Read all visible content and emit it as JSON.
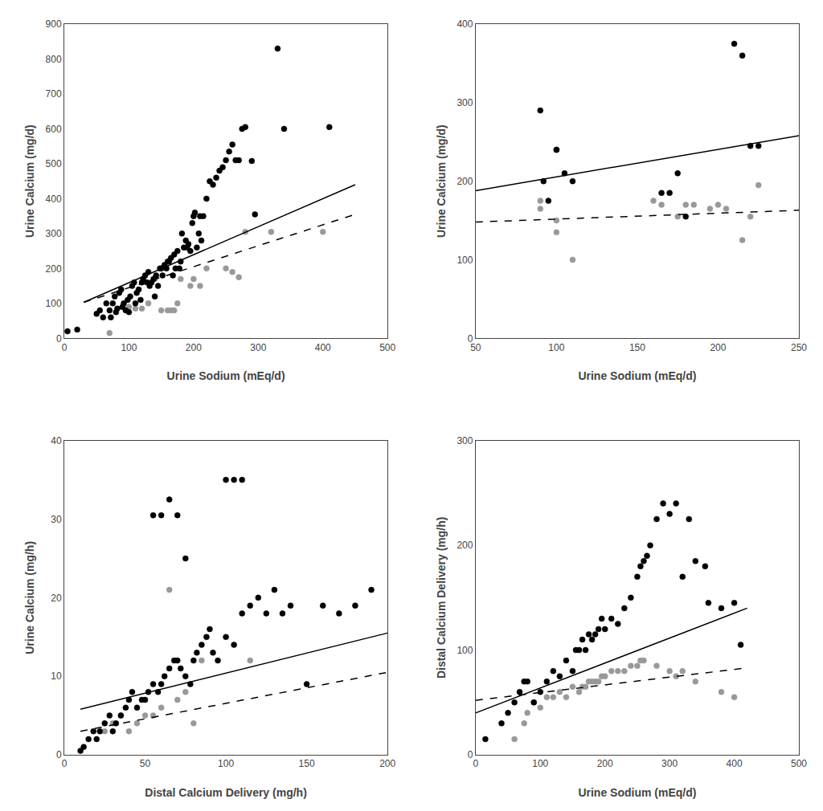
{
  "chart_data": [
    {
      "type": "scatter",
      "xlabel": "Urine Sodium (mEq/d)",
      "ylabel": "Urine Calcium (mg/d)",
      "xlim": [
        0,
        500
      ],
      "ylim": [
        0,
        900
      ],
      "xticks": [
        0,
        100,
        200,
        300,
        400,
        500
      ],
      "yticks": [
        0,
        100,
        200,
        300,
        400,
        500,
        600,
        700,
        800,
        900
      ],
      "grid": false,
      "series": [
        {
          "type": "scatter",
          "color": "#999999",
          "marker": "circle",
          "x": [
            70,
            90,
            100,
            110,
            120,
            130,
            140,
            150,
            160,
            165,
            170,
            175,
            180,
            195,
            200,
            210,
            220,
            250,
            260,
            270,
            280,
            320,
            400
          ],
          "values": [
            15,
            90,
            90,
            85,
            85,
            100,
            170,
            80,
            80,
            80,
            80,
            100,
            170,
            150,
            170,
            150,
            200,
            200,
            190,
            175,
            305,
            305,
            305
          ]
        },
        {
          "type": "scatter",
          "color": "#000000",
          "marker": "circle",
          "x": [
            5,
            20,
            50,
            55,
            60,
            65,
            70,
            72,
            75,
            78,
            80,
            82,
            85,
            88,
            90,
            92,
            95,
            98,
            100,
            102,
            105,
            108,
            110,
            112,
            115,
            118,
            120,
            122,
            125,
            128,
            130,
            132,
            135,
            138,
            140,
            142,
            145,
            148,
            150,
            152,
            155,
            158,
            160,
            162,
            165,
            168,
            170,
            172,
            175,
            178,
            180,
            182,
            185,
            188,
            190,
            192,
            195,
            198,
            200,
            202,
            205,
            208,
            210,
            212,
            215,
            220,
            225,
            230,
            235,
            240,
            245,
            250,
            255,
            260,
            265,
            270,
            275,
            280,
            290,
            295,
            330,
            340,
            410
          ],
          "values": [
            20,
            25,
            70,
            80,
            60,
            100,
            80,
            60,
            100,
            120,
            75,
            85,
            130,
            140,
            90,
            100,
            80,
            110,
            75,
            120,
            150,
            160,
            100,
            130,
            140,
            110,
            160,
            170,
            180,
            160,
            190,
            150,
            160,
            170,
            120,
            180,
            150,
            200,
            200,
            180,
            210,
            200,
            220,
            220,
            230,
            180,
            240,
            200,
            250,
            200,
            220,
            300,
            260,
            280,
            260,
            270,
            250,
            330,
            350,
            360,
            260,
            300,
            350,
            280,
            350,
            400,
            450,
            440,
            460,
            480,
            490,
            510,
            535,
            555,
            510,
            510,
            600,
            605,
            508,
            355,
            830,
            600,
            605
          ]
        },
        {
          "type": "line",
          "color": "#000000",
          "line_style": "solid",
          "x": [
            30,
            450
          ],
          "values": [
            103,
            440
          ]
        },
        {
          "type": "line",
          "color": "#000000",
          "line_style": "dashed",
          "x": [
            30,
            450
          ],
          "values": [
            103,
            355
          ]
        }
      ]
    },
    {
      "type": "scatter",
      "xlabel": "Urine Sodium (mEq/d)",
      "ylabel": "Urine Calcium (mg/d)",
      "xlim": [
        50,
        250
      ],
      "ylim": [
        0,
        400
      ],
      "xticks": [
        50,
        100,
        150,
        200,
        250
      ],
      "yticks": [
        0,
        100,
        200,
        300,
        400
      ],
      "grid": false,
      "series": [
        {
          "type": "scatter",
          "color": "#999999",
          "marker": "circle",
          "x": [
            90,
            90,
            100,
            100,
            110,
            160,
            165,
            175,
            180,
            185,
            195,
            200,
            205,
            215,
            220,
            225
          ],
          "values": [
            175,
            165,
            150,
            135,
            100,
            175,
            170,
            155,
            170,
            170,
            165,
            170,
            165,
            125,
            155,
            195
          ]
        },
        {
          "type": "scatter",
          "color": "#000000",
          "marker": "circle",
          "x": [
            90,
            92,
            95,
            100,
            100,
            105,
            110,
            165,
            170,
            175,
            180,
            210,
            215,
            220,
            225
          ],
          "values": [
            290,
            200,
            175,
            240,
            240,
            210,
            200,
            185,
            185,
            210,
            155,
            375,
            360,
            245,
            245
          ]
        },
        {
          "type": "line",
          "color": "#000000",
          "line_style": "solid",
          "x": [
            50,
            250
          ],
          "values": [
            188,
            258
          ]
        },
        {
          "type": "line",
          "color": "#000000",
          "line_style": "dashed",
          "x": [
            50,
            250
          ],
          "values": [
            148,
            163
          ]
        }
      ]
    },
    {
      "type": "scatter",
      "xlabel": "Distal Calcium Delivery (mg/h)",
      "ylabel": "Urine Calcium (mg/h)",
      "xlim": [
        0,
        200
      ],
      "ylim": [
        0,
        40
      ],
      "xticks": [
        0,
        50,
        100,
        150,
        200
      ],
      "yticks": [
        0,
        10,
        20,
        30,
        40
      ],
      "grid": false,
      "series": [
        {
          "type": "scatter",
          "color": "#999999",
          "marker": "circle",
          "x": [
            25,
            30,
            35,
            40,
            45,
            50,
            55,
            60,
            65,
            70,
            75,
            80,
            85,
            115
          ],
          "values": [
            3,
            4,
            5,
            3,
            4,
            5,
            5,
            6,
            21,
            7,
            8,
            4,
            12,
            12
          ]
        },
        {
          "type": "scatter",
          "color": "#000000",
          "marker": "circle",
          "x": [
            10,
            12,
            15,
            18,
            20,
            22,
            25,
            28,
            30,
            32,
            35,
            38,
            40,
            42,
            45,
            48,
            50,
            52,
            55,
            58,
            60,
            62,
            65,
            68,
            70,
            72,
            75,
            78,
            80,
            82,
            85,
            88,
            90,
            92,
            95,
            100,
            105,
            110,
            115,
            120,
            125,
            130,
            135,
            140,
            150,
            160,
            170,
            180,
            190
          ],
          "values": [
            0.5,
            1,
            2,
            3,
            2,
            3,
            4,
            5,
            3,
            4,
            5,
            6,
            7,
            8,
            6,
            7,
            7,
            8,
            9,
            8,
            9,
            10,
            11,
            12,
            12,
            11,
            10,
            9,
            12,
            13,
            14,
            15,
            16,
            13,
            12,
            15,
            14,
            18,
            19,
            20,
            18,
            21,
            18,
            19,
            9,
            19,
            18,
            19,
            21
          ]
        },
        {
          "type": "scatter",
          "color": "#000000",
          "marker": "circle",
          "x": [
            55,
            60,
            65,
            70,
            75,
            100,
            105,
            110
          ],
          "values": [
            30.5,
            30.5,
            32.5,
            30.5,
            25,
            35,
            35,
            35
          ]
        },
        {
          "type": "line",
          "color": "#000000",
          "line_style": "solid",
          "x": [
            10,
            200
          ],
          "values": [
            5.8,
            15.5
          ]
        },
        {
          "type": "line",
          "color": "#000000",
          "line_style": "dashed",
          "x": [
            10,
            200
          ],
          "values": [
            3.0,
            10.5
          ]
        }
      ]
    },
    {
      "type": "scatter",
      "xlabel": "Urine Sodium (mEq/d)",
      "ylabel": "Distal Calcium Delivery (mg/h)",
      "xlim": [
        0,
        500
      ],
      "ylim": [
        0,
        300
      ],
      "xticks": [
        0,
        100,
        200,
        300,
        400,
        500
      ],
      "yticks": [
        0,
        100,
        200,
        300
      ],
      "grid": false,
      "series": [
        {
          "type": "scatter",
          "color": "#999999",
          "marker": "circle",
          "x": [
            60,
            75,
            80,
            90,
            100,
            110,
            120,
            130,
            140,
            150,
            160,
            165,
            170,
            175,
            180,
            185,
            190,
            195,
            200,
            210,
            220,
            230,
            240,
            250,
            255,
            260,
            280,
            300,
            310,
            320,
            340,
            380,
            400
          ],
          "values": [
            15,
            30,
            40,
            50,
            45,
            55,
            55,
            60,
            55,
            65,
            60,
            65,
            65,
            70,
            70,
            70,
            70,
            75,
            75,
            80,
            80,
            80,
            85,
            85,
            90,
            90,
            85,
            80,
            75,
            80,
            70,
            60,
            55
          ]
        },
        {
          "type": "scatter",
          "color": "#000000",
          "marker": "circle",
          "x": [
            15,
            40,
            50,
            60,
            68,
            75,
            80,
            90,
            100,
            110,
            120,
            130,
            140,
            150,
            155,
            160,
            165,
            170,
            175,
            180,
            185,
            190,
            195,
            200,
            210,
            220,
            230,
            240,
            250,
            255,
            260,
            265,
            270,
            280,
            290,
            300,
            310,
            320,
            330,
            340,
            355,
            360,
            380,
            400,
            410
          ],
          "values": [
            15,
            30,
            40,
            50,
            60,
            70,
            70,
            50,
            60,
            70,
            80,
            75,
            90,
            80,
            100,
            100,
            110,
            100,
            115,
            110,
            115,
            120,
            130,
            120,
            130,
            125,
            140,
            150,
            170,
            180,
            185,
            190,
            200,
            225,
            240,
            230,
            240,
            170,
            225,
            185,
            180,
            145,
            140,
            145,
            105
          ]
        },
        {
          "type": "line",
          "color": "#000000",
          "line_style": "solid",
          "x": [
            0,
            420
          ],
          "values": [
            40,
            140
          ]
        },
        {
          "type": "line",
          "color": "#000000",
          "line_style": "dashed",
          "x": [
            0,
            420
          ],
          "values": [
            52,
            83
          ]
        }
      ]
    }
  ]
}
